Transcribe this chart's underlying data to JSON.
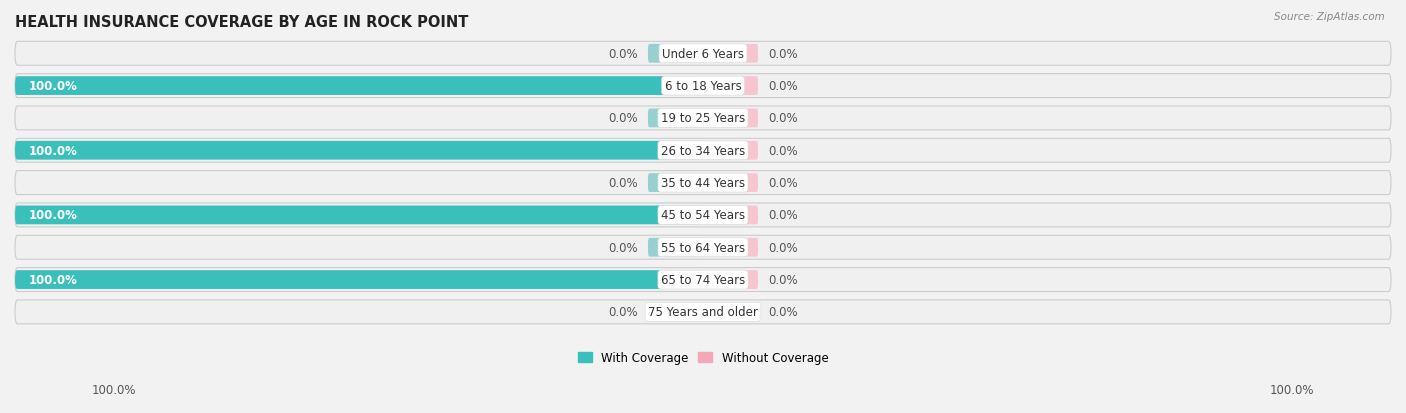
{
  "title": "HEALTH INSURANCE COVERAGE BY AGE IN ROCK POINT",
  "source": "Source: ZipAtlas.com",
  "categories": [
    "Under 6 Years",
    "6 to 18 Years",
    "19 to 25 Years",
    "26 to 34 Years",
    "35 to 44 Years",
    "45 to 54 Years",
    "55 to 64 Years",
    "65 to 74 Years",
    "75 Years and older"
  ],
  "with_coverage": [
    0.0,
    100.0,
    0.0,
    100.0,
    0.0,
    100.0,
    0.0,
    100.0,
    0.0
  ],
  "without_coverage": [
    0.0,
    0.0,
    0.0,
    0.0,
    0.0,
    0.0,
    0.0,
    0.0,
    0.0
  ],
  "coverage_color": "#3bbfbc",
  "no_coverage_color": "#f4a7b9",
  "coverage_color_light": "#96d0d0",
  "no_coverage_color_light": "#f7c5d2",
  "title_fontsize": 10.5,
  "label_fontsize": 8.5,
  "value_fontsize": 8.5,
  "source_fontsize": 7.5,
  "bg_color": "#f2f2f2",
  "row_bg": "#e8e8e8",
  "row_inner_bg": "#f5f5f5"
}
